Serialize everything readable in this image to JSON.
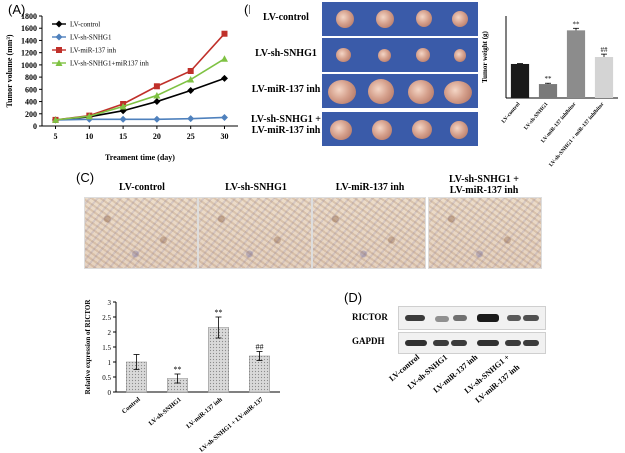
{
  "panels": {
    "a": "(A)",
    "b": "(B)",
    "c": "(C)",
    "d": "(D)"
  },
  "chart_data": [
    {
      "id": "A",
      "type": "line",
      "xlabel": "Treament time (day)",
      "ylabel": "Tumor volume (mm³)",
      "x": [
        5,
        10,
        15,
        20,
        25,
        30
      ],
      "xlim": [
        3,
        32
      ],
      "ylim": [
        0,
        1800
      ],
      "yticks": [
        0,
        200,
        400,
        600,
        800,
        1000,
        1200,
        1400,
        1600,
        1800
      ],
      "legend_position": "top-left",
      "series": [
        {
          "name": "LV-control",
          "color": "#000000",
          "marker": "diamond",
          "values": [
            100,
            150,
            250,
            400,
            580,
            780
          ]
        },
        {
          "name": "LV-sh-SNHG1",
          "color": "#4f81bd",
          "marker": "diamond",
          "values": [
            100,
            110,
            110,
            110,
            120,
            140
          ]
        },
        {
          "name": "LV-miR-137 inh",
          "color": "#c0302a",
          "marker": "square",
          "values": [
            100,
            170,
            360,
            650,
            900,
            1510
          ]
        },
        {
          "name": "LV-sh-SNHG1+miR137 inh",
          "color": "#7fc243",
          "marker": "triangle",
          "values": [
            100,
            160,
            320,
            500,
            760,
            1100
          ]
        }
      ]
    },
    {
      "id": "B",
      "type": "bar",
      "ylabel": "Tumor weight (g)",
      "categories": [
        "LV-control",
        "LV-sh-SNHG1",
        "LV-miR-137 inhibitor",
        "LV-sh-SNHG1 + miR-137 inhibitor"
      ],
      "values": [
        0.83,
        0.34,
        1.65,
        1.0
      ],
      "errors": [
        0.01,
        0.02,
        0.05,
        0.07
      ],
      "colors": [
        "#1a1a1a",
        "#7a7a7a",
        "#8c8c8c",
        "#d4d4d4"
      ],
      "annotations": [
        "",
        "**",
        "**",
        "##"
      ],
      "ylim": [
        0,
        2
      ]
    },
    {
      "id": "C",
      "type": "bar",
      "ylabel": "Relative expression of RICTOR",
      "categories": [
        "Control",
        "LV-sh-SNHG1",
        "LV-miR-137 inh",
        "LV-sh-SNHG1 + LV-miR-137"
      ],
      "values": [
        1.0,
        0.45,
        2.15,
        1.2
      ],
      "errors": [
        0.25,
        0.15,
        0.35,
        0.15
      ],
      "annotations": [
        "",
        "**",
        "**",
        "##"
      ],
      "ylim": [
        0,
        3
      ],
      "yticks": [
        0,
        0.5,
        1,
        1.5,
        2,
        2.5,
        3
      ],
      "yticklabels": [
        "0",
        "0.5",
        "1",
        "1.5",
        "2",
        "2.5",
        "3"
      ]
    }
  ],
  "panel_b": {
    "rows": [
      "LV-control",
      "LV-sh-SNHG1",
      "LV-miR-137 inh",
      "LV-sh-SNHG1 +",
      "LV-miR-137 inh"
    ],
    "tissue_color": "#3a5ba9"
  },
  "panel_c": {
    "labels": [
      "LV-control",
      "LV-sh-SNHG1",
      "LV-miR-137 inh",
      "LV-sh-SNHG1 +",
      "LV-miR-137 inh"
    ]
  },
  "panel_d": {
    "rows": [
      "RICTOR",
      "GAPDH"
    ],
    "lanes": [
      "LV-control",
      "LV-sh-SNHG1",
      "LV-miR-137 inh",
      "LV-sh-SNHG1 +",
      "LV-miR-137 inh"
    ]
  }
}
